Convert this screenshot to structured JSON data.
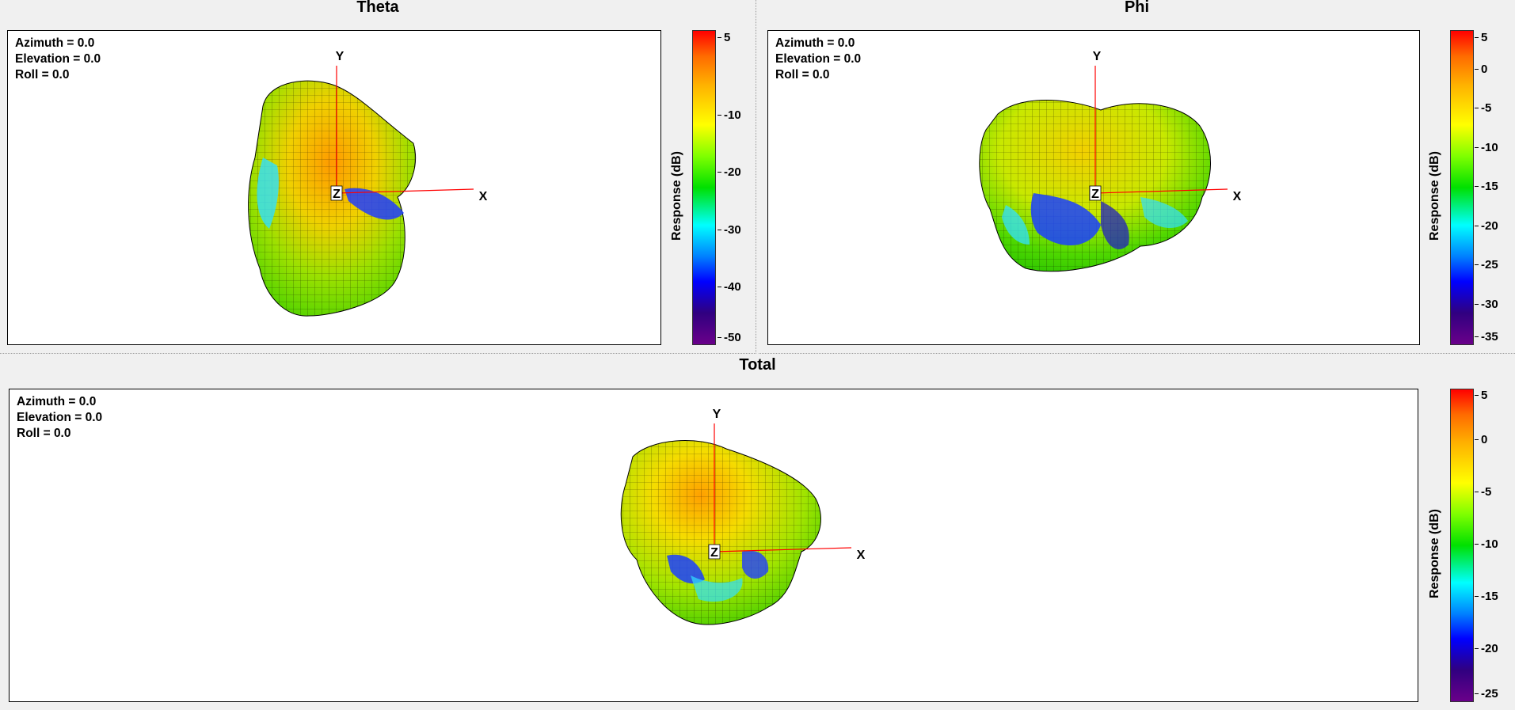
{
  "panels": {
    "theta": {
      "title": "Theta",
      "readout": {
        "azimuth": "Azimuth = 0.0",
        "elevation": "Elevation = 0.0",
        "roll": "Roll = 0.0"
      },
      "axes": {
        "x": "X",
        "y": "Y",
        "z": "Z"
      },
      "colorbar": {
        "label": "Response  (dB)",
        "ticks": [
          "5",
          "-10",
          "-20",
          "-30",
          "-40",
          "-50"
        ]
      }
    },
    "phi": {
      "title": "Phi",
      "readout": {
        "azimuth": "Azimuth = 0.0",
        "elevation": "Elevation = 0.0",
        "roll": "Roll = 0.0"
      },
      "axes": {
        "x": "X",
        "y": "Y",
        "z": "Z"
      },
      "colorbar": {
        "label": "Response  (dB)",
        "ticks": [
          "5",
          "0",
          "-5",
          "-10",
          "-15",
          "-20",
          "-25",
          "-30",
          "-35"
        ]
      }
    },
    "total": {
      "title": "Total",
      "readout": {
        "azimuth": "Azimuth = 0.0",
        "elevation": "Elevation = 0.0",
        "roll": "Roll = 0.0"
      },
      "axes": {
        "x": "X",
        "y": "Y",
        "z": "Z"
      },
      "colorbar": {
        "label": "Response  (dB)",
        "ticks": [
          "5",
          "0",
          "-5",
          "-10",
          "-15",
          "-20",
          "-25"
        ]
      }
    }
  },
  "colors": {
    "axis_line": "#ff0000",
    "mesh_line": "#000000",
    "colormap": [
      "#ff0000",
      "#ffb000",
      "#ffff00",
      "#00e000",
      "#00ffff",
      "#0000ff",
      "#6a008a"
    ]
  }
}
